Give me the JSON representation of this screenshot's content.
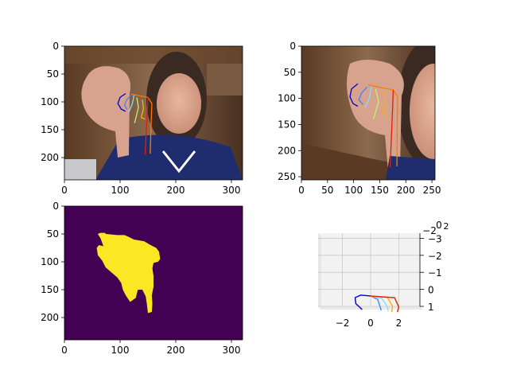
{
  "figure": {
    "layout": "2x2 grid",
    "colors": {
      "skeleton": [
        "#0000cc",
        "#3a86ff",
        "#7fe0ff",
        "#c6f06a",
        "#ffb000",
        "#ff7a00",
        "#e02000"
      ],
      "mask_background": "#440154",
      "mask_foreground": "#fde725"
    }
  },
  "chart_data": [
    {
      "id": "panel-1",
      "type": "image",
      "content": "photo of person holding up hand with skeleton overlay",
      "title": "",
      "xlabel": "",
      "ylabel": "",
      "xlim": [
        0,
        320
      ],
      "ylim": [
        240,
        0
      ],
      "x_ticks": [
        "0",
        "100",
        "200",
        "300"
      ],
      "y_ticks": [
        "0",
        "50",
        "100",
        "150",
        "200"
      ],
      "x_tick_values": [
        0,
        100,
        200,
        300
      ],
      "y_tick_values": [
        0,
        50,
        100,
        150,
        200
      ],
      "keypoints": [
        {
          "name": "thumb",
          "points": [
            [
              110,
              85
            ],
            [
              100,
              92
            ],
            [
              96,
              103
            ],
            [
              102,
              113
            ],
            [
              110,
              117
            ]
          ]
        },
        {
          "name": "index",
          "points": [
            [
              120,
              88
            ],
            [
              112,
              96
            ],
            [
              108,
              106
            ],
            [
              113,
              114
            ]
          ]
        },
        {
          "name": "middle",
          "points": [
            [
              125,
              88
            ],
            [
              122,
              103
            ],
            [
              116,
              118
            ]
          ]
        },
        {
          "name": "ring",
          "points": [
            [
              130,
              92
            ],
            [
              133,
              110
            ],
            [
              126,
              138
            ]
          ]
        },
        {
          "name": "little",
          "points": [
            [
              140,
              96
            ],
            [
              142,
              112
            ],
            [
              138,
              128
            ],
            [
              145,
              131
            ]
          ]
        },
        {
          "name": "palm",
          "points": [
            [
              120,
              86
            ],
            [
              150,
              92
            ],
            [
              157,
              103
            ],
            [
              154,
              193
            ]
          ]
        },
        {
          "name": "wrist",
          "points": [
            [
              150,
              92
            ],
            [
              149,
              115
            ],
            [
              145,
              195
            ]
          ]
        }
      ]
    },
    {
      "id": "panel-2",
      "type": "image",
      "content": "cropped photo of hand with skeleton overlay",
      "title": "",
      "xlabel": "",
      "ylabel": "",
      "xlim": [
        0,
        256
      ],
      "ylim": [
        256,
        0
      ],
      "x_ticks": [
        "0",
        "50",
        "100",
        "150",
        "200",
        "250"
      ],
      "y_ticks": [
        "0",
        "50",
        "100",
        "150",
        "200",
        "250"
      ],
      "x_tick_values": [
        0,
        50,
        100,
        150,
        200,
        250
      ],
      "y_tick_values": [
        0,
        50,
        100,
        150,
        200,
        250
      ],
      "keypoints": [
        {
          "name": "thumb",
          "points": [
            [
              108,
              72
            ],
            [
              96,
              82
            ],
            [
              93,
              97
            ],
            [
              99,
              110
            ],
            [
              108,
              115
            ]
          ]
        },
        {
          "name": "index",
          "points": [
            [
              126,
              78
            ],
            [
              115,
              90
            ],
            [
              110,
              103
            ],
            [
              118,
              112
            ]
          ]
        },
        {
          "name": "middle",
          "points": [
            [
              134,
              78
            ],
            [
              130,
              100
            ],
            [
              122,
              118
            ]
          ]
        },
        {
          "name": "ring",
          "points": [
            [
              142,
              82
            ],
            [
              148,
              106
            ],
            [
              138,
              140
            ]
          ]
        },
        {
          "name": "little",
          "points": [
            [
              158,
              88
            ],
            [
              160,
              108
            ],
            [
              155,
              128
            ],
            [
              164,
              132
            ]
          ]
        },
        {
          "name": "palm",
          "points": [
            [
              128,
              74
            ],
            [
              176,
              84
            ],
            [
              184,
              96
            ],
            [
              183,
              230
            ]
          ]
        },
        {
          "name": "wrist",
          "points": [
            [
              176,
              84
            ],
            [
              175,
              112
            ],
            [
              170,
              232
            ]
          ]
        }
      ]
    },
    {
      "id": "panel-3",
      "type": "heatmap",
      "content": "binary hand segmentation mask",
      "title": "",
      "xlabel": "",
      "ylabel": "",
      "xlim": [
        0,
        320
      ],
      "ylim": [
        240,
        0
      ],
      "x_ticks": [
        "0",
        "100",
        "200",
        "300"
      ],
      "y_ticks": [
        "0",
        "50",
        "100",
        "150",
        "200"
      ],
      "x_tick_values": [
        0,
        100,
        200,
        300
      ],
      "y_tick_values": [
        0,
        50,
        100,
        150,
        200
      ],
      "mask_outline": [
        [
          64,
          48
        ],
        [
          75,
          50
        ],
        [
          95,
          52
        ],
        [
          108,
          52
        ],
        [
          115,
          55
        ],
        [
          125,
          60
        ],
        [
          143,
          63
        ],
        [
          155,
          70
        ],
        [
          165,
          75
        ],
        [
          170,
          82
        ],
        [
          172,
          95
        ],
        [
          168,
          100
        ],
        [
          160,
          102
        ],
        [
          158,
          112
        ],
        [
          160,
          125
        ],
        [
          160,
          145
        ],
        [
          157,
          160
        ],
        [
          158,
          175
        ],
        [
          157,
          190
        ],
        [
          150,
          192
        ],
        [
          148,
          175
        ],
        [
          146,
          162
        ],
        [
          140,
          150
        ],
        [
          132,
          150
        ],
        [
          128,
          165
        ],
        [
          118,
          172
        ],
        [
          110,
          160
        ],
        [
          105,
          150
        ],
        [
          102,
          138
        ],
        [
          95,
          128
        ],
        [
          88,
          122
        ],
        [
          74,
          110
        ],
        [
          68,
          98
        ],
        [
          60,
          88
        ],
        [
          58,
          75
        ],
        [
          62,
          70
        ],
        [
          70,
          72
        ],
        [
          65,
          58
        ],
        [
          60,
          50
        ]
      ],
      "grid": false
    },
    {
      "id": "panel-4",
      "type": "line",
      "content": "3D hand skeleton plot",
      "title": "",
      "xlabel": "",
      "ylabel": "",
      "zlabel": "",
      "x_ticks": [
        "−2",
        "0",
        "2"
      ],
      "x_tick_values": [
        -2,
        0,
        2
      ],
      "y_ticks": [
        "1",
        "0",
        "−1",
        "−2",
        "−3"
      ],
      "y_tick_values": [
        1,
        0,
        -1,
        -2,
        -3
      ],
      "z_ticks": [
        "−2",
        "0",
        "2"
      ],
      "z_tick_values": [
        -2,
        0,
        2
      ],
      "xlim": [
        -3.5,
        3.5
      ],
      "ylim": [
        1,
        -3.3
      ],
      "grid": true,
      "series": [
        {
          "values": [
            [
              -0.6,
              1.0
            ],
            [
              -1.05,
              0.65
            ],
            [
              -1.1,
              0.3
            ],
            [
              -0.7,
              0.15
            ],
            [
              0.0,
              0.2
            ]
          ]
        },
        {
          "values": [
            [
              0.0,
              0.2
            ],
            [
              0.5,
              0.4
            ],
            [
              0.7,
              0.9
            ],
            [
              0.75,
              1.05
            ]
          ]
        },
        {
          "values": [
            [
              0.0,
              0.2
            ],
            [
              0.8,
              0.35
            ],
            [
              1.2,
              0.85
            ],
            [
              1.25,
              1.1
            ]
          ]
        },
        {
          "values": [
            [
              0.0,
              0.2
            ],
            [
              1.2,
              0.3
            ],
            [
              1.55,
              0.8
            ],
            [
              1.5,
              1.15
            ]
          ]
        },
        {
          "values": [
            [
              0.0,
              0.2
            ],
            [
              1.7,
              0.3
            ],
            [
              2.0,
              0.85
            ],
            [
              1.9,
              1.15
            ]
          ]
        }
      ]
    }
  ]
}
